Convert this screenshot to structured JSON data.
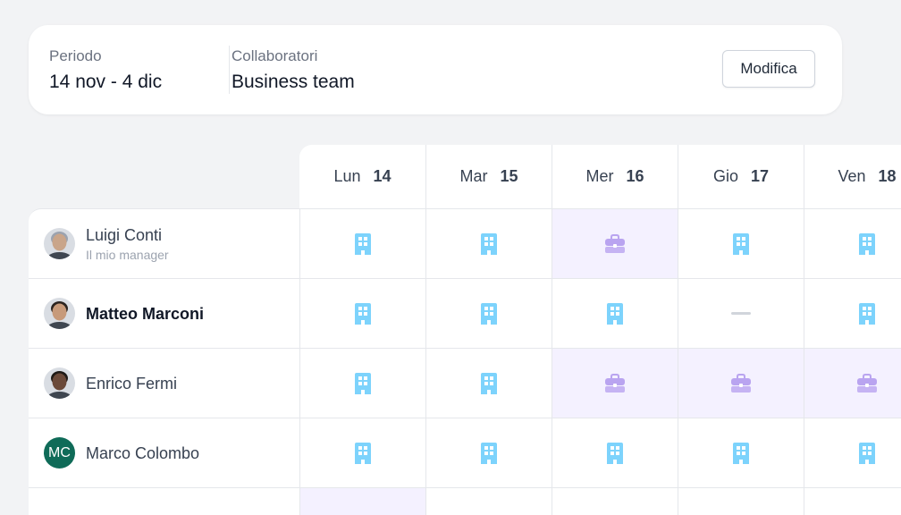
{
  "filters": {
    "period_label": "Periodo",
    "period_value": "14 nov - 4 dic",
    "collaborators_label": "Collaboratori",
    "collaborators_value": "Business team",
    "edit_label": "Modifica"
  },
  "days": [
    {
      "name": "Lun",
      "num": "14"
    },
    {
      "name": "Mar",
      "num": "15"
    },
    {
      "name": "Mer",
      "num": "16"
    },
    {
      "name": "Gio",
      "num": "17"
    },
    {
      "name": "Ven",
      "num": "18"
    }
  ],
  "colors": {
    "office": "#7dd3fc",
    "travel": "#b9a4f0",
    "travel_bg": "#f4f1ff"
  },
  "legend": {
    "office": "building-icon",
    "travel": "briefcase-icon",
    "none": "dash"
  },
  "people": [
    {
      "name": "Luigi Conti",
      "subtitle": "Il mio manager",
      "avatar": "photo",
      "skin": "#c9a58a",
      "hair": "#9ca3af",
      "bold": false,
      "days": [
        "office",
        "office",
        "travel",
        "office",
        "office"
      ]
    },
    {
      "name": "Matteo Marconi",
      "subtitle": "",
      "avatar": "photo",
      "skin": "#c79a7a",
      "hair": "#2b2420",
      "bold": true,
      "days": [
        "office",
        "office",
        "office",
        "none",
        "office"
      ]
    },
    {
      "name": "Enrico Fermi",
      "subtitle": "",
      "avatar": "photo",
      "skin": "#6b4a3a",
      "hair": "#1f1a17",
      "bold": false,
      "days": [
        "office",
        "office",
        "travel",
        "travel",
        "travel"
      ]
    },
    {
      "name": "Marco Colombo",
      "subtitle": "",
      "avatar": "initials",
      "initials": "MC",
      "bold": false,
      "days": [
        "office",
        "office",
        "office",
        "office",
        "office"
      ]
    }
  ]
}
